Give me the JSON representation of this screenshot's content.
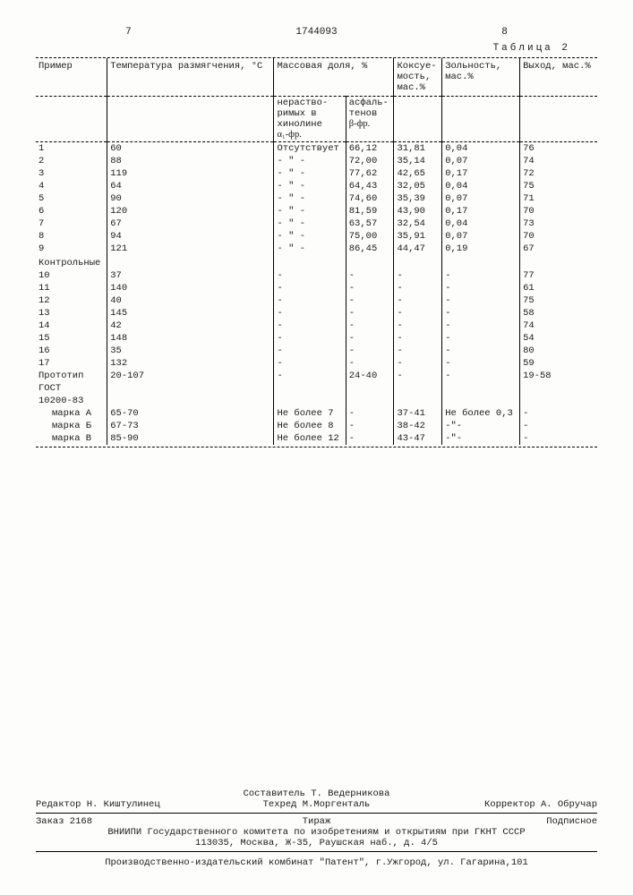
{
  "header": {
    "page_left": "7",
    "doc_number": "1744093",
    "page_right": "8",
    "table_label": "Таблица 2"
  },
  "columns": {
    "c1": "Пример",
    "c2": "Температура размягчения, °С",
    "c3_group": "Массовая доля, %",
    "c3a_l1": "нераство-",
    "c3a_l2": "римых в",
    "c3a_l3": "хинолине",
    "c3a_l4": "α₁-фр.",
    "c3b_l1": "асфаль-",
    "c3b_l2": "тенов",
    "c3b_l3": "β-фр.",
    "c4": "Коксуе-мость, мас.%",
    "c5": "Зольность, мас.%",
    "c6": "Выход, мас.%"
  },
  "rows": [
    {
      "n": "1",
      "t": "60",
      "a": "Отсутствует",
      "b": "66,12",
      "k": "31,81",
      "z": "0,04",
      "v": "76"
    },
    {
      "n": "2",
      "t": "88",
      "a": "- \" -",
      "b": "72,00",
      "k": "35,14",
      "z": "0,07",
      "v": "74"
    },
    {
      "n": "3",
      "t": "119",
      "a": "- \" -",
      "b": "77,62",
      "k": "42,65",
      "z": "0,17",
      "v": "72"
    },
    {
      "n": "4",
      "t": "64",
      "a": "- \" -",
      "b": "64,43",
      "k": "32,05",
      "z": "0,04",
      "v": "75"
    },
    {
      "n": "5",
      "t": "90",
      "a": "- \" -",
      "b": "74,60",
      "k": "35,39",
      "z": "0,07",
      "v": "71"
    },
    {
      "n": "6",
      "t": "120",
      "a": "- \" -",
      "b": "81,59",
      "k": "43,90",
      "z": "0,17",
      "v": "70"
    },
    {
      "n": "7",
      "t": "67",
      "a": "- \" -",
      "b": "63,57",
      "k": "32,54",
      "z": "0,04",
      "v": "73"
    },
    {
      "n": "8",
      "t": "94",
      "a": "- \" -",
      "b": "75,00",
      "k": "35,91",
      "z": "0,07",
      "v": "70"
    },
    {
      "n": "9",
      "t": "121",
      "a": "- \" -",
      "b": "86,45",
      "k": "44,47",
      "z": "0,19",
      "v": "67"
    }
  ],
  "control_label": "Контрольные",
  "control_rows": [
    {
      "n": "10",
      "t": "37",
      "a": "-",
      "b": "-",
      "k": "-",
      "z": "-",
      "v": "77"
    },
    {
      "n": "11",
      "t": "140",
      "a": "-",
      "b": "-",
      "k": "-",
      "z": "-",
      "v": "61"
    },
    {
      "n": "12",
      "t": "40",
      "a": "-",
      "b": "-",
      "k": "-",
      "z": "-",
      "v": "75"
    },
    {
      "n": "13",
      "t": "145",
      "a": "-",
      "b": "-",
      "k": "-",
      "z": "-",
      "v": "58"
    },
    {
      "n": "14",
      "t": "42",
      "a": "-",
      "b": "-",
      "k": "-",
      "z": "-",
      "v": "74"
    },
    {
      "n": "15",
      "t": "148",
      "a": "-",
      "b": "-",
      "k": "-",
      "z": "-",
      "v": "54"
    },
    {
      "n": "16",
      "t": "35",
      "a": "-",
      "b": "-",
      "k": "-",
      "z": "-",
      "v": "80"
    },
    {
      "n": "17",
      "t": "132",
      "a": "-",
      "b": "-",
      "k": "-",
      "z": "-",
      "v": "59"
    }
  ],
  "prototype": {
    "n": "Прототип",
    "t": "20-107",
    "a": "-",
    "b": "24-40",
    "k": "-",
    "z": "-",
    "v": "19-58"
  },
  "gost_label": "ГОСТ",
  "gost_num": "10200-83",
  "gost_rows": [
    {
      "n": "марка А",
      "t": "65-70",
      "a": "Не более 7",
      "b": "-",
      "k": "37-41",
      "z": "Не более 0,3",
      "v": "-"
    },
    {
      "n": "марка Б",
      "t": "67-73",
      "a": "Не более 8",
      "b": "-",
      "k": "38-42",
      "z": "-\"-",
      "v": "-"
    },
    {
      "n": "марка В",
      "t": "85-90",
      "a": "Не более 12",
      "b": "-",
      "k": "43-47",
      "z": "-\"-",
      "v": "-"
    }
  ],
  "footer": {
    "compiler": "Составитель Т. Ведерникова",
    "editor": "Редактор Н. Киштулинец",
    "techred": "Техред М.Моргенталь",
    "corrector": "Корректор А. Обручар",
    "order": "Заказ 2168",
    "tirage": "Тираж",
    "subscript": "Подписное",
    "org1": "ВНИИПИ Государственного комитета по изобретениям и открытиям при ГКНТ СССР",
    "org2": "113035, Москва, Ж-35, Раушская наб., д. 4/5",
    "bottom": "Производственно-издательский комбинат \"Патент\", г.Ужгород, ул. Гагарина,101"
  }
}
